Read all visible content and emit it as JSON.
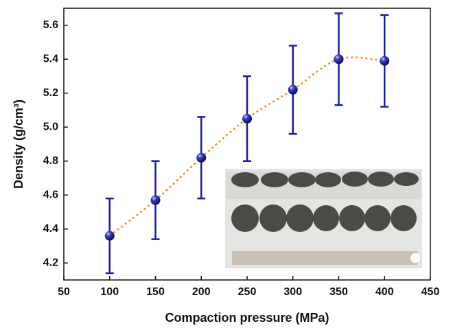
{
  "chart_data": {
    "type": "errorbar",
    "x_label": "Compaction pressure (MPa)",
    "y_label": "Density (g/cm³)",
    "series": [
      {
        "x": [
          100,
          150,
          200,
          250,
          300,
          350,
          400
        ],
        "values": [
          4.36,
          4.57,
          4.82,
          5.05,
          5.22,
          5.4,
          5.39
        ],
        "errors": [
          0.22,
          0.23,
          0.24,
          0.25,
          0.26,
          0.27,
          0.27
        ],
        "color": "#1a1aa8",
        "line_color": "#f28c1e"
      }
    ],
    "xlim": [
      50,
      450
    ],
    "xticks": [
      50,
      100,
      150,
      200,
      250,
      300,
      350,
      400,
      450
    ],
    "ylim": [
      4.1,
      5.7
    ],
    "yticks": [
      4.2,
      4.4,
      4.6,
      4.8,
      {
        "value": 5,
        "label": "5.0"
      },
      5.2,
      5.4,
      5.6
    ]
  }
}
